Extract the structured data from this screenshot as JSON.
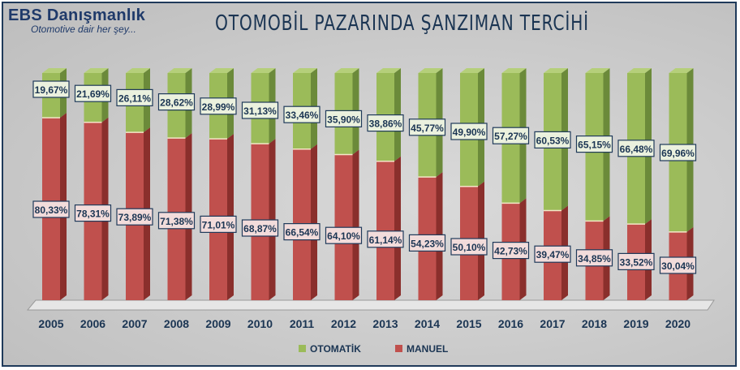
{
  "brand": {
    "name": "EBS Danışmanlık",
    "tagline": "Otomotive dair her şey..."
  },
  "chart_data": {
    "type": "bar",
    "stacked": true,
    "title": "OTOMOBİL PAZARINDA ŞANZIMAN TERCİHİ",
    "categories": [
      "2005",
      "2006",
      "2007",
      "2008",
      "2009",
      "2010",
      "2011",
      "2012",
      "2013",
      "2014",
      "2015",
      "2016",
      "2017",
      "2018",
      "2019",
      "2020"
    ],
    "series": [
      {
        "name": "MANUEL",
        "color": "#c0504d",
        "values": [
          80.33,
          78.31,
          73.89,
          71.38,
          71.01,
          68.87,
          66.54,
          64.1,
          61.14,
          54.23,
          50.1,
          42.73,
          39.47,
          34.85,
          33.52,
          30.04
        ],
        "labels": [
          "80,33%",
          "78,31%",
          "73,89%",
          "71,38%",
          "71,01%",
          "68,87%",
          "66,54%",
          "64,10%",
          "61,14%",
          "54,23%",
          "50,10%",
          "42,73%",
          "39,47%",
          "34,85%",
          "33,52%",
          "30,04%"
        ]
      },
      {
        "name": "OTOMATİK",
        "color": "#9bbb59",
        "values": [
          19.67,
          21.69,
          26.11,
          28.62,
          28.99,
          31.13,
          33.46,
          35.9,
          38.86,
          45.77,
          49.9,
          57.27,
          60.53,
          65.15,
          66.48,
          69.96
        ],
        "labels": [
          "19,67%",
          "21,69%",
          "26,11%",
          "28,62%",
          "28,99%",
          "31,13%",
          "33,46%",
          "35,90%",
          "38,86%",
          "45,77%",
          "49,90%",
          "57,27%",
          "60,53%",
          "65,15%",
          "66,48%",
          "69,96%"
        ]
      }
    ],
    "ylim": [
      0,
      100
    ],
    "legend": "bottom",
    "grid": false
  }
}
